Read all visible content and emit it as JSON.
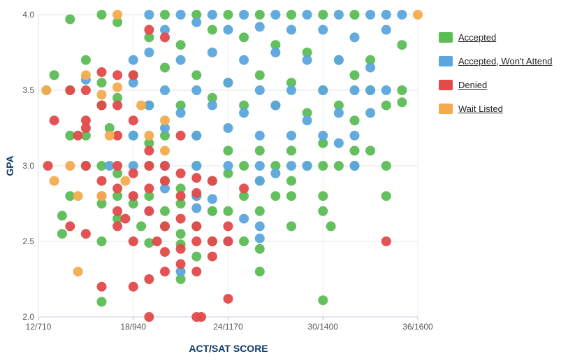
{
  "chart_data": {
    "type": "scatter",
    "xlabel": "ACT/SAT SCORE",
    "ylabel": "GPA",
    "x_ticks": [
      "12/710",
      "18/940",
      "24/1170",
      "30/1400",
      "36/1600"
    ],
    "y_ticks": [
      "2.0",
      "2.5",
      "3.0",
      "3.5",
      "4.0"
    ],
    "xlim": [
      12,
      36
    ],
    "ylim": [
      2.0,
      4.0
    ],
    "x_unit": "ACT composite score (SAT equivalent shown in tick labels)",
    "legend_position": "right",
    "grid": true,
    "series": [
      {
        "name": "Accepted",
        "color": "#5cbd55",
        "points": [
          [
            16,
            4.0
          ],
          [
            20,
            4.0
          ],
          [
            22,
            4.0
          ],
          [
            24,
            4.0
          ],
          [
            26,
            4.0
          ],
          [
            28,
            4.0
          ],
          [
            30,
            4.0
          ],
          [
            32,
            4.0
          ],
          [
            14,
            3.97
          ],
          [
            17,
            3.95
          ],
          [
            19,
            3.85
          ],
          [
            21,
            3.8
          ],
          [
            23,
            3.9
          ],
          [
            25,
            3.85
          ],
          [
            27,
            3.8
          ],
          [
            29,
            3.75
          ],
          [
            31,
            3.7
          ],
          [
            33,
            3.7
          ],
          [
            35,
            3.8
          ],
          [
            13,
            3.6
          ],
          [
            15,
            3.7
          ],
          [
            16,
            3.55
          ],
          [
            18,
            3.6
          ],
          [
            20,
            3.65
          ],
          [
            22,
            3.6
          ],
          [
            24,
            3.55
          ],
          [
            26,
            3.6
          ],
          [
            28,
            3.55
          ],
          [
            30,
            3.5
          ],
          [
            32,
            3.6
          ],
          [
            33,
            3.5
          ],
          [
            35,
            3.5
          ],
          [
            12.5,
            3.5
          ],
          [
            14,
            3.5
          ],
          [
            16,
            3.4
          ],
          [
            17,
            3.45
          ],
          [
            19,
            3.4
          ],
          [
            21,
            3.4
          ],
          [
            23,
            3.45
          ],
          [
            25,
            3.4
          ],
          [
            27,
            3.4
          ],
          [
            29,
            3.35
          ],
          [
            31,
            3.4
          ],
          [
            32,
            3.3
          ],
          [
            34,
            3.4
          ],
          [
            35,
            3.42
          ],
          [
            14,
            3.2
          ],
          [
            15,
            3.2
          ],
          [
            16.5,
            3.25
          ],
          [
            18,
            3.2
          ],
          [
            19,
            3.15
          ],
          [
            20,
            3.2
          ],
          [
            22,
            3.2
          ],
          [
            24,
            3.1
          ],
          [
            26,
            3.1
          ],
          [
            28,
            3.1
          ],
          [
            30,
            3.15
          ],
          [
            32,
            3.1
          ],
          [
            33,
            3.1
          ],
          [
            15,
            3.0
          ],
          [
            16,
            3.0
          ],
          [
            17,
            2.95
          ],
          [
            19,
            3.0
          ],
          [
            20,
            2.9
          ],
          [
            21,
            2.85
          ],
          [
            22,
            3.0
          ],
          [
            23,
            2.9
          ],
          [
            24,
            2.95
          ],
          [
            25,
            3.0
          ],
          [
            26,
            2.9
          ],
          [
            27,
            3.0
          ],
          [
            28,
            2.9
          ],
          [
            29,
            3.0
          ],
          [
            30,
            3.0
          ],
          [
            31,
            3.0
          ],
          [
            32,
            3.0
          ],
          [
            34,
            3.0
          ],
          [
            14,
            2.8
          ],
          [
            16,
            2.75
          ],
          [
            17,
            2.8
          ],
          [
            18,
            2.75
          ],
          [
            19,
            2.8
          ],
          [
            20,
            2.7
          ],
          [
            21,
            2.75
          ],
          [
            22,
            2.8
          ],
          [
            23,
            2.7
          ],
          [
            25,
            2.8
          ],
          [
            27,
            2.8
          ],
          [
            28,
            2.8
          ],
          [
            30,
            2.8
          ],
          [
            34,
            2.8
          ],
          [
            13.5,
            2.67
          ],
          [
            17,
            2.65
          ],
          [
            18.5,
            2.6
          ],
          [
            20,
            2.6
          ],
          [
            21,
            2.55
          ],
          [
            22,
            2.6
          ],
          [
            23,
            2.7
          ],
          [
            24,
            2.7
          ],
          [
            26,
            2.7
          ],
          [
            28,
            2.6
          ],
          [
            30,
            2.7
          ],
          [
            30.5,
            2.6
          ],
          [
            13.5,
            2.55
          ],
          [
            16,
            2.5
          ],
          [
            19,
            2.49
          ],
          [
            21,
            2.48
          ],
          [
            23,
            2.5
          ],
          [
            25,
            2.5
          ],
          [
            26,
            2.45
          ],
          [
            22,
            2.4
          ],
          [
            26,
            2.3
          ],
          [
            21,
            2.25
          ],
          [
            16,
            2.1
          ],
          [
            30,
            2.11
          ]
        ]
      },
      {
        "name": "Accepted, Won't Attend",
        "color": "#5ba7dd",
        "points": [
          [
            19,
            4.0
          ],
          [
            21,
            4.0
          ],
          [
            23,
            4.0
          ],
          [
            25,
            4.0
          ],
          [
            27,
            4.0
          ],
          [
            29,
            4.0
          ],
          [
            31,
            4.0
          ],
          [
            33,
            4.0
          ],
          [
            34,
            4.0
          ],
          [
            35,
            4.0
          ],
          [
            20,
            3.9
          ],
          [
            22,
            3.95
          ],
          [
            24,
            3.9
          ],
          [
            26,
            3.92
          ],
          [
            28,
            3.9
          ],
          [
            30,
            3.9
          ],
          [
            32,
            3.85
          ],
          [
            34,
            3.9
          ],
          [
            18,
            3.7
          ],
          [
            19,
            3.75
          ],
          [
            21,
            3.7
          ],
          [
            23,
            3.75
          ],
          [
            25,
            3.7
          ],
          [
            27,
            3.75
          ],
          [
            29,
            3.7
          ],
          [
            31,
            3.7
          ],
          [
            33,
            3.65
          ],
          [
            15,
            3.57
          ],
          [
            18,
            3.55
          ],
          [
            20,
            3.5
          ],
          [
            22,
            3.5
          ],
          [
            24,
            3.55
          ],
          [
            26,
            3.5
          ],
          [
            28,
            3.5
          ],
          [
            30,
            3.5
          ],
          [
            32,
            3.5
          ],
          [
            33,
            3.5
          ],
          [
            34,
            3.5
          ],
          [
            19,
            3.4
          ],
          [
            21,
            3.35
          ],
          [
            23,
            3.4
          ],
          [
            25,
            3.35
          ],
          [
            27,
            3.4
          ],
          [
            29,
            3.3
          ],
          [
            31,
            3.35
          ],
          [
            33,
            3.35
          ],
          [
            18,
            3.2
          ],
          [
            20,
            3.25
          ],
          [
            22,
            3.2
          ],
          [
            24,
            3.25
          ],
          [
            26,
            3.2
          ],
          [
            28,
            3.2
          ],
          [
            30,
            3.2
          ],
          [
            31,
            3.15
          ],
          [
            32,
            3.2
          ],
          [
            16.5,
            3.0
          ],
          [
            18,
            3.0
          ],
          [
            20,
            3.0
          ],
          [
            22,
            3.0
          ],
          [
            24,
            3.0
          ],
          [
            26,
            3.0
          ],
          [
            28,
            3.0
          ],
          [
            29,
            3.0
          ],
          [
            32,
            3.0
          ],
          [
            18,
            2.8
          ],
          [
            20,
            2.85
          ],
          [
            22,
            2.8
          ],
          [
            23,
            2.78
          ],
          [
            26,
            2.9
          ],
          [
            27,
            2.95
          ],
          [
            19,
            2.7
          ],
          [
            22,
            2.72
          ],
          [
            25,
            2.65
          ],
          [
            26,
            2.6
          ],
          [
            24,
            2.5
          ],
          [
            26,
            2.52
          ],
          [
            21,
            2.3
          ]
        ]
      },
      {
        "name": "Denied",
        "color": "#e34a4a",
        "points": [
          [
            19,
            3.9
          ],
          [
            20,
            3.85
          ],
          [
            16,
            3.62
          ],
          [
            17,
            3.6
          ],
          [
            18,
            3.6
          ],
          [
            14,
            3.5
          ],
          [
            15,
            3.5
          ],
          [
            17,
            3.4
          ],
          [
            16,
            3.4
          ],
          [
            13,
            3.3
          ],
          [
            15,
            3.3
          ],
          [
            15,
            3.25
          ],
          [
            14.5,
            3.2
          ],
          [
            18,
            3.3
          ],
          [
            17,
            3.2
          ],
          [
            19,
            3.1
          ],
          [
            21,
            3.2
          ],
          [
            12.6,
            3.0
          ],
          [
            15,
            3.0
          ],
          [
            17,
            3.0
          ],
          [
            18,
            2.95
          ],
          [
            19,
            3.0
          ],
          [
            20,
            3.0
          ],
          [
            21,
            2.95
          ],
          [
            22,
            2.92
          ],
          [
            23,
            2.9
          ],
          [
            16,
            2.9
          ],
          [
            17,
            2.85
          ],
          [
            18,
            2.8
          ],
          [
            19,
            2.85
          ],
          [
            20,
            2.9
          ],
          [
            21,
            2.8
          ],
          [
            22,
            2.82
          ],
          [
            25,
            2.85
          ],
          [
            16,
            2.8
          ],
          [
            17,
            2.7
          ],
          [
            17.5,
            2.65
          ],
          [
            19,
            2.7
          ],
          [
            20,
            2.6
          ],
          [
            21,
            2.65
          ],
          [
            22,
            2.6
          ],
          [
            24,
            2.6
          ],
          [
            14,
            2.6
          ],
          [
            15,
            2.55
          ],
          [
            17,
            2.6
          ],
          [
            18,
            2.5
          ],
          [
            19.5,
            2.5
          ],
          [
            20,
            2.43
          ],
          [
            21,
            2.45
          ],
          [
            22,
            2.5
          ],
          [
            23,
            2.5
          ],
          [
            24,
            2.5
          ],
          [
            20,
            2.3
          ],
          [
            21,
            2.35
          ],
          [
            22,
            2.3
          ],
          [
            23,
            2.4
          ],
          [
            19,
            2.25
          ],
          [
            18,
            2.2
          ],
          [
            16,
            2.2
          ],
          [
            24,
            2.12
          ],
          [
            19,
            2.0
          ],
          [
            22,
            2.0
          ],
          [
            22.3,
            2.0
          ],
          [
            34,
            2.5
          ]
        ]
      },
      {
        "name": "Wait Listed",
        "color": "#f4ab4e",
        "points": [
          [
            17,
            4.0
          ],
          [
            36,
            4.0
          ],
          [
            12.5,
            3.5
          ],
          [
            15,
            3.6
          ],
          [
            16,
            3.47
          ],
          [
            17,
            3.52
          ],
          [
            18.5,
            3.4
          ],
          [
            20,
            3.3
          ],
          [
            16.5,
            3.2
          ],
          [
            19,
            3.2
          ],
          [
            20,
            3.1
          ],
          [
            14,
            3.0
          ],
          [
            17.5,
            2.9
          ],
          [
            13,
            2.9
          ],
          [
            14.5,
            2.8
          ],
          [
            16,
            2.8
          ],
          [
            14.5,
            2.3
          ]
        ]
      }
    ]
  },
  "legend": {
    "items": [
      {
        "label": "Accepted",
        "color": "#5cbd55"
      },
      {
        "label": "Accepted, Won't Attend",
        "color": "#5ba7dd"
      },
      {
        "label": "Denied",
        "color": "#e34a4a"
      },
      {
        "label": "Wait Listed",
        "color": "#f4ab4e"
      }
    ]
  }
}
